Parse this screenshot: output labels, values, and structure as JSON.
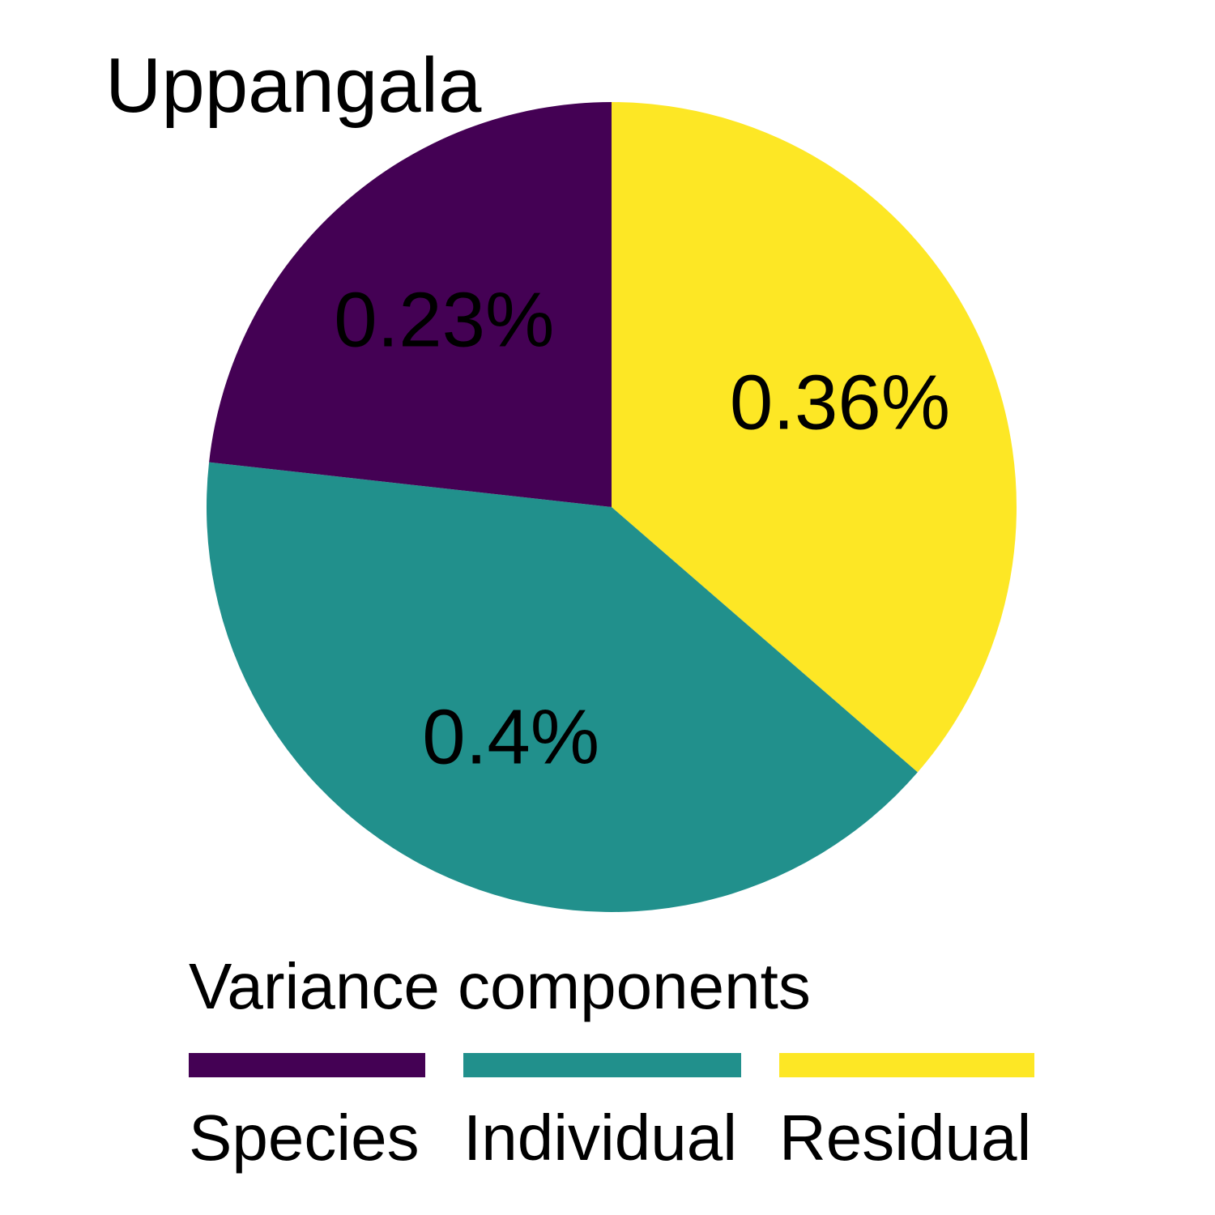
{
  "chart_data": {
    "type": "pie",
    "title": "Uppangala",
    "legend_title": "Variance components",
    "legend_position": "bottom",
    "slices": [
      {
        "name": "Residual",
        "value": 0.36,
        "label": "0.36%",
        "color": "#FDE725"
      },
      {
        "name": "Individual",
        "value": 0.4,
        "label": "0.4%",
        "color": "#21908C"
      },
      {
        "name": "Species",
        "value": 0.23,
        "label": "0.23%",
        "color": "#440154"
      }
    ],
    "legend_order": [
      "Species",
      "Individual",
      "Residual"
    ]
  }
}
